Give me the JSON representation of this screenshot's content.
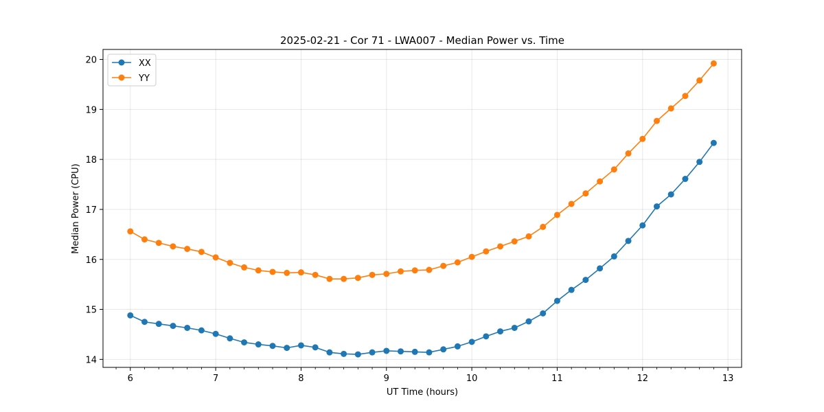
{
  "chart_data": {
    "type": "line",
    "title": "2025-02-21 - Cor 71 - LWA007 - Median Power vs. Time",
    "xlabel": "UT Time (hours)",
    "ylabel": "Median Power (CPU)",
    "xlim": [
      5.68,
      13.16
    ],
    "ylim": [
      13.84,
      20.2
    ],
    "xticks": [
      6,
      7,
      8,
      9,
      10,
      11,
      12,
      13
    ],
    "yticks": [
      14,
      15,
      16,
      17,
      18,
      19,
      20
    ],
    "grid": true,
    "legend_position": "top-left",
    "x": [
      6.0,
      6.1667,
      6.3333,
      6.5,
      6.6667,
      6.8333,
      7.0,
      7.1667,
      7.3333,
      7.5,
      7.6667,
      7.8333,
      8.0,
      8.1667,
      8.3333,
      8.5,
      8.6667,
      8.8333,
      9.0,
      9.1667,
      9.3333,
      9.5,
      9.6667,
      9.8333,
      10.0,
      10.1667,
      10.3333,
      10.5,
      10.6667,
      10.8333,
      11.0,
      11.1667,
      11.3333,
      11.5,
      11.6667,
      11.8333,
      12.0,
      12.1667,
      12.3333,
      12.5,
      12.6667,
      12.8333
    ],
    "series": [
      {
        "name": "XX",
        "color": "#1f77b4",
        "values": [
          14.88,
          14.75,
          14.71,
          14.67,
          14.63,
          14.58,
          14.51,
          14.42,
          14.34,
          14.3,
          14.27,
          14.23,
          14.28,
          14.24,
          14.14,
          14.11,
          14.1,
          14.14,
          14.17,
          14.16,
          14.15,
          14.14,
          14.2,
          14.26,
          14.35,
          14.46,
          14.56,
          14.63,
          14.76,
          14.92,
          15.17,
          15.39,
          15.59,
          15.82,
          16.06,
          16.37,
          16.68,
          17.06,
          17.3,
          17.61,
          17.95,
          18.33
        ]
      },
      {
        "name": "YY",
        "color": "#ff7f0e",
        "values": [
          16.56,
          16.4,
          16.33,
          16.26,
          16.21,
          16.15,
          16.04,
          15.93,
          15.84,
          15.78,
          15.75,
          15.73,
          15.74,
          15.69,
          15.61,
          15.61,
          15.63,
          15.69,
          15.71,
          15.76,
          15.78,
          15.79,
          15.87,
          15.94,
          16.05,
          16.16,
          16.26,
          16.36,
          16.46,
          16.65,
          16.89,
          17.11,
          17.32,
          17.56,
          17.8,
          18.12,
          18.41,
          18.77,
          19.02,
          19.27,
          19.58,
          19.92
        ]
      }
    ]
  }
}
